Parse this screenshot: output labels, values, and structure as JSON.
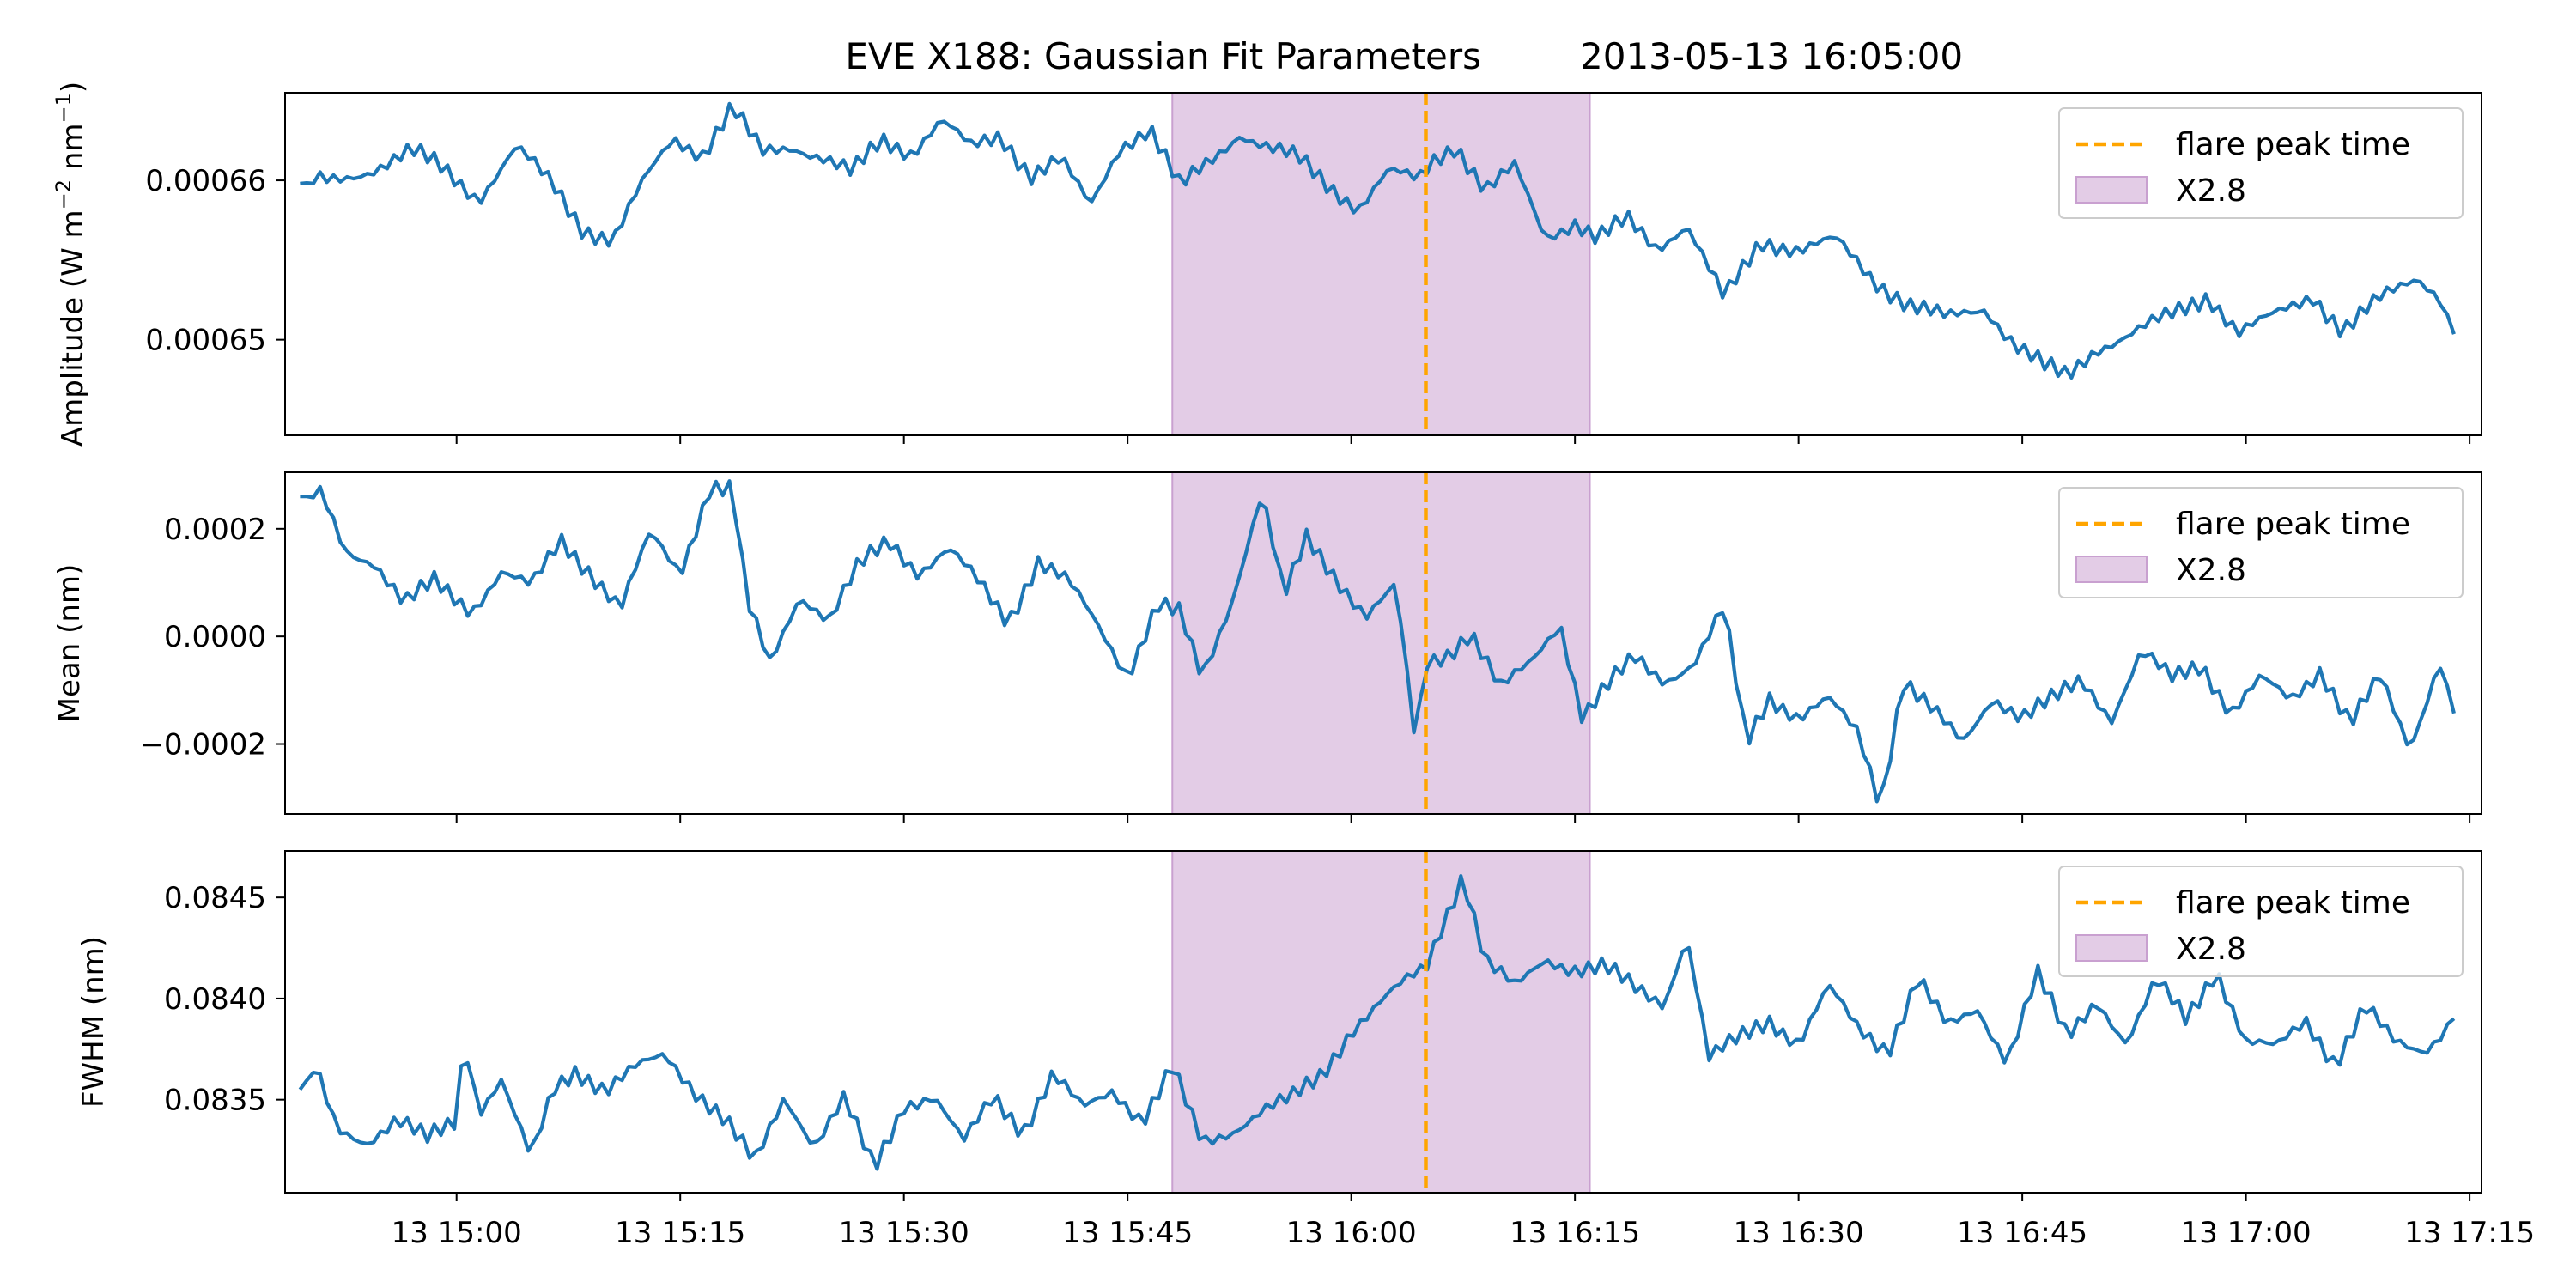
{
  "title_left": "EVE X188: Gaussian Fit Parameters",
  "title_right": "2013-05-13 16:05:00",
  "chart_data": {
    "type": "line",
    "x_ticks": [
      "13 15:00",
      "13 15:15",
      "13 15:30",
      "13 15:45",
      "13 16:00",
      "13 16:15",
      "13 16:30",
      "13 16:45",
      "13 17:00",
      "13 17:15"
    ],
    "x_tick_minutes": [
      0,
      15,
      30,
      45,
      60,
      75,
      90,
      105,
      120,
      135
    ],
    "x_range_minutes": [
      -11.5,
      135.8
    ],
    "data_start_minute": -10.5,
    "data_end_minute": 134.2,
    "flare_peak_time": "2013-05-13 16:05:00",
    "flare_peak_minute": 65,
    "flare_interval": {
      "label": "X2.8",
      "start_minute": 48,
      "end_minute": 76
    },
    "series_color": "#1f77b4",
    "flare_color": "#ffa500",
    "span_color": "#e3cce6",
    "panels": [
      {
        "ylabel_main": "Amplitude (W m",
        "ylabel_exp1": "−2",
        "ylabel_mid": " nm",
        "ylabel_exp2": "−1",
        "ylabel_end": ")",
        "ylim": [
          0.000644,
          0.0006655
        ],
        "yticks": [
          0.00065,
          0.00066
        ],
        "ytick_labels": [
          "0.00065",
          "0.00066"
        ],
        "legend": [
          "flare peak time",
          "X2.8"
        ],
        "points": [
          [
            -10.5,
            0.0006598
          ],
          [
            -8,
            0.00066
          ],
          [
            -5.5,
            0.0006608
          ],
          [
            -3,
            0.0006618
          ],
          [
            -1,
            0.0006608
          ],
          [
            1.5,
            0.0006589
          ],
          [
            4,
            0.000662
          ],
          [
            6.5,
            0.0006597
          ],
          [
            8.5,
            0.000657
          ],
          [
            10.5,
            0.0006562
          ],
          [
            12.5,
            0.0006598
          ],
          [
            14.5,
            0.0006627
          ],
          [
            16.5,
            0.0006617
          ],
          [
            18.5,
            0.0006645
          ],
          [
            20.5,
            0.0006617
          ],
          [
            22.5,
            0.0006622
          ],
          [
            24.5,
            0.0006615
          ],
          [
            26.5,
            0.0006604
          ],
          [
            28.5,
            0.0006625
          ],
          [
            30.5,
            0.0006618
          ],
          [
            32.5,
            0.0006638
          ],
          [
            34.5,
            0.000662
          ],
          [
            36.5,
            0.0006628
          ],
          [
            38.5,
            0.0006604
          ],
          [
            40.5,
            0.0006613
          ],
          [
            42.5,
            0.0006583
          ],
          [
            44.5,
            0.0006622
          ],
          [
            46.5,
            0.0006633
          ],
          [
            48.5,
            0.0006595
          ],
          [
            50.5,
            0.0006612
          ],
          [
            52.5,
            0.000663
          ],
          [
            54.5,
            0.000662
          ],
          [
            56.5,
            0.0006613
          ],
          [
            58.5,
            0.0006597
          ],
          [
            60.5,
            0.0006583
          ],
          [
            62.5,
            0.0006605
          ],
          [
            64.5,
            0.00066
          ],
          [
            65.5,
            0.0006613
          ],
          [
            67,
            0.0006623
          ],
          [
            69,
            0.0006593
          ],
          [
            71,
            0.0006608
          ],
          [
            73,
            0.0006565
          ],
          [
            75,
            0.0006574
          ],
          [
            76.5,
            0.0006563
          ],
          [
            78.5,
            0.0006575
          ],
          [
            80.5,
            0.0006558
          ],
          [
            82.5,
            0.0006573
          ],
          [
            85,
            0.0006525
          ],
          [
            87.5,
            0.0006562
          ],
          [
            90,
            0.0006557
          ],
          [
            92.5,
            0.0006562
          ],
          [
            95,
            0.0006538
          ],
          [
            97.5,
            0.0006522
          ],
          [
            100,
            0.0006513
          ],
          [
            102.5,
            0.000652
          ],
          [
            104.5,
            0.0006498
          ],
          [
            106.5,
            0.0006483
          ],
          [
            108,
            0.0006476
          ],
          [
            110,
            0.0006495
          ],
          [
            112.5,
            0.0006505
          ],
          [
            115,
            0.0006515
          ],
          [
            117.5,
            0.0006528
          ],
          [
            119.5,
            0.0006505
          ],
          [
            122,
            0.0006515
          ],
          [
            124.5,
            0.0006528
          ],
          [
            126.5,
            0.0006506
          ],
          [
            129,
            0.0006525
          ],
          [
            131.5,
            0.000654
          ],
          [
            133,
            0.0006528
          ],
          [
            134.2,
            0.0006497
          ]
        ]
      },
      {
        "ylabel_main": "Mean (nm)",
        "ylim": [
          -0.00033,
          0.000305
        ],
        "yticks": [
          -0.0002,
          0.0,
          0.0002
        ],
        "ytick_labels": [
          "−0.0002",
          "0.0000",
          "0.0002"
        ],
        "legend": [
          "flare peak time",
          "X2.8"
        ],
        "points": [
          [
            -10.5,
            0.00026
          ],
          [
            -9,
            0.00026
          ],
          [
            -7.5,
            0.00016
          ],
          [
            -5.5,
            0.00014
          ],
          [
            -3.5,
            6e-05
          ],
          [
            -1.5,
            0.0001
          ],
          [
            1,
            5e-05
          ],
          [
            3,
            0.00012
          ],
          [
            5,
            9e-05
          ],
          [
            7,
            0.00018
          ],
          [
            9,
            0.00012
          ],
          [
            11,
            5e-05
          ],
          [
            13,
            0.00019
          ],
          [
            15,
            0.00012
          ],
          [
            17,
            0.00028
          ],
          [
            18.5,
            0.00027
          ],
          [
            19.5,
            6e-05
          ],
          [
            21,
            -5e-05
          ],
          [
            23,
            8e-05
          ],
          [
            25,
            3e-05
          ],
          [
            27,
            0.00013
          ],
          [
            29,
            0.00018
          ],
          [
            31,
            0.00012
          ],
          [
            33,
            0.00016
          ],
          [
            35,
            0.0001
          ],
          [
            37,
            3e-05
          ],
          [
            39,
            0.00014
          ],
          [
            41,
            0.0001
          ],
          [
            43,
            2e-05
          ],
          [
            45,
            -7e-05
          ],
          [
            47,
            6e-05
          ],
          [
            48.5,
            4e-05
          ],
          [
            50,
            -8e-05
          ],
          [
            52,
            7e-05
          ],
          [
            54,
            0.00027
          ],
          [
            55.5,
            7e-05
          ],
          [
            57,
            0.00018
          ],
          [
            59,
            0.00011
          ],
          [
            61,
            4e-05
          ],
          [
            63,
            9e-05
          ],
          [
            64.3,
            -0.0002
          ],
          [
            65,
            -5e-05
          ],
          [
            66.5,
            -3e-05
          ],
          [
            68,
            1e-05
          ],
          [
            70,
            -0.0001
          ],
          [
            72,
            -5e-05
          ],
          [
            74,
            3e-05
          ],
          [
            75.5,
            -0.00015
          ],
          [
            77,
            -0.0001
          ],
          [
            79,
            -4e-05
          ],
          [
            81,
            -8e-05
          ],
          [
            83,
            -5e-05
          ],
          [
            85,
            5e-05
          ],
          [
            86.5,
            -0.0002
          ],
          [
            88,
            -0.00011
          ],
          [
            90,
            -0.00015
          ],
          [
            92,
            -0.00012
          ],
          [
            94,
            -0.00018
          ],
          [
            95.5,
            -0.00031
          ],
          [
            97,
            -8e-05
          ],
          [
            99,
            -0.00014
          ],
          [
            101,
            -0.0002
          ],
          [
            103,
            -0.00011
          ],
          [
            105,
            -0.00015
          ],
          [
            107,
            -0.00012
          ],
          [
            109,
            -8e-05
          ],
          [
            111,
            -0.00015
          ],
          [
            113,
            -3e-05
          ],
          [
            115,
            -8e-05
          ],
          [
            117,
            -5e-05
          ],
          [
            119,
            -0.00014
          ],
          [
            121,
            -8e-05
          ],
          [
            123,
            -0.00012
          ],
          [
            125,
            -6e-05
          ],
          [
            127,
            -0.00016
          ],
          [
            129,
            -8e-05
          ],
          [
            131,
            -0.00021
          ],
          [
            133,
            -4e-05
          ],
          [
            134.2,
            -0.00017
          ]
        ]
      },
      {
        "ylabel_main": "FWHM (nm)",
        "ylim": [
          0.08304,
          0.08473
        ],
        "yticks": [
          0.0835,
          0.084,
          0.0845
        ],
        "ytick_labels": [
          "0.0835",
          "0.0840",
          "0.0845"
        ],
        "legend": [
          "flare peak time",
          "X2.8"
        ],
        "points": [
          [
            -10.5,
            0.08355
          ],
          [
            -9.5,
            0.08365
          ],
          [
            -8,
            0.08335
          ],
          [
            -6,
            0.0833
          ],
          [
            -4,
            0.0834
          ],
          [
            -2,
            0.0833
          ],
          [
            0,
            0.0834
          ],
          [
            0.5,
            0.08382
          ],
          [
            1.5,
            0.08345
          ],
          [
            3,
            0.0836
          ],
          [
            5,
            0.0832
          ],
          [
            6.5,
            0.08355
          ],
          [
            8,
            0.08365
          ],
          [
            10,
            0.08355
          ],
          [
            12,
            0.08365
          ],
          [
            14,
            0.08372
          ],
          [
            16,
            0.08355
          ],
          [
            18,
            0.0834
          ],
          [
            20,
            0.08318
          ],
          [
            22,
            0.08352
          ],
          [
            24,
            0.08328
          ],
          [
            26,
            0.0835
          ],
          [
            28,
            0.08315
          ],
          [
            30,
            0.08348
          ],
          [
            32,
            0.08352
          ],
          [
            34,
            0.08328
          ],
          [
            36,
            0.08352
          ],
          [
            38,
            0.08335
          ],
          [
            40,
            0.08362
          ],
          [
            42,
            0.08345
          ],
          [
            44,
            0.08355
          ],
          [
            46,
            0.0834
          ],
          [
            48,
            0.08365
          ],
          [
            50,
            0.08328
          ],
          [
            52,
            0.08335
          ],
          [
            54,
            0.08345
          ],
          [
            56,
            0.0835
          ],
          [
            58,
            0.08362
          ],
          [
            60,
            0.08385
          ],
          [
            62,
            0.08398
          ],
          [
            64,
            0.0841
          ],
          [
            65,
            0.08415
          ],
          [
            66,
            0.08435
          ],
          [
            67.5,
            0.08462
          ],
          [
            69,
            0.08418
          ],
          [
            71,
            0.08405
          ],
          [
            73,
            0.0842
          ],
          [
            75,
            0.08415
          ],
          [
            77,
            0.08415
          ],
          [
            79,
            0.08405
          ],
          [
            81,
            0.08398
          ],
          [
            82.5,
            0.08432
          ],
          [
            84,
            0.0837
          ],
          [
            86,
            0.0838
          ],
          [
            88,
            0.0839
          ],
          [
            90,
            0.08378
          ],
          [
            92,
            0.08405
          ],
          [
            94,
            0.08385
          ],
          [
            96,
            0.08375
          ],
          [
            98,
            0.0841
          ],
          [
            100,
            0.08385
          ],
          [
            102,
            0.08395
          ],
          [
            104,
            0.0837
          ],
          [
            106,
            0.08412
          ],
          [
            108,
            0.0838
          ],
          [
            110,
            0.084
          ],
          [
            112,
            0.08378
          ],
          [
            114,
            0.08408
          ],
          [
            116,
            0.0839
          ],
          [
            118,
            0.08415
          ],
          [
            120,
            0.08378
          ],
          [
            122,
            0.08375
          ],
          [
            124,
            0.0839
          ],
          [
            126,
            0.08368
          ],
          [
            128,
            0.08395
          ],
          [
            130,
            0.08378
          ],
          [
            132,
            0.08375
          ],
          [
            134.2,
            0.08392
          ]
        ]
      }
    ]
  }
}
